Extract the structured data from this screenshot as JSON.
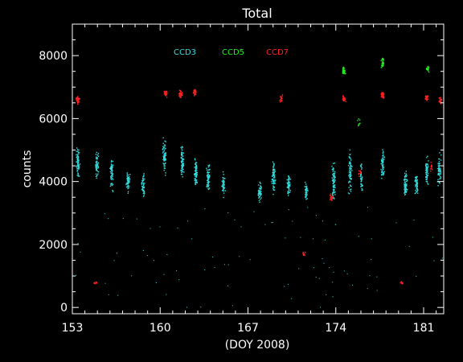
{
  "chart_data": {
    "type": "scatter",
    "title": "Total",
    "xlabel": "(DOY 2008)",
    "ylabel": "counts",
    "xlim": [
      153,
      182.6
    ],
    "ylim": [
      -200,
      9000
    ],
    "xticks": [
      153,
      160,
      167,
      174,
      181
    ],
    "yticks": [
      0,
      2000,
      4000,
      6000,
      8000
    ],
    "legend_placement": "top-center",
    "grid": false,
    "series": [
      {
        "name": "CCD3",
        "color": "#33dddd",
        "clusters": [
          {
            "x": 153.4,
            "y": 4600,
            "spread": 600,
            "n": 70
          },
          {
            "x": 154.9,
            "y": 4600,
            "spread": 500,
            "n": 55
          },
          {
            "x": 156.1,
            "y": 4300,
            "spread": 700,
            "n": 60
          },
          {
            "x": 157.4,
            "y": 4000,
            "spread": 500,
            "n": 50
          },
          {
            "x": 158.6,
            "y": 3900,
            "spread": 500,
            "n": 50
          },
          {
            "x": 160.3,
            "y": 4800,
            "spread": 700,
            "n": 70
          },
          {
            "x": 161.7,
            "y": 4600,
            "spread": 700,
            "n": 70
          },
          {
            "x": 162.8,
            "y": 4300,
            "spread": 600,
            "n": 70
          },
          {
            "x": 163.8,
            "y": 4100,
            "spread": 600,
            "n": 60
          },
          {
            "x": 165.0,
            "y": 3900,
            "spread": 500,
            "n": 45
          },
          {
            "x": 167.9,
            "y": 3700,
            "spread": 400,
            "n": 55
          },
          {
            "x": 169.0,
            "y": 4200,
            "spread": 700,
            "n": 70
          },
          {
            "x": 170.2,
            "y": 3900,
            "spread": 500,
            "n": 55
          },
          {
            "x": 171.6,
            "y": 3700,
            "spread": 400,
            "n": 40
          },
          {
            "x": 173.8,
            "y": 4000,
            "spread": 800,
            "n": 80
          },
          {
            "x": 175.1,
            "y": 4300,
            "spread": 900,
            "n": 70
          },
          {
            "x": 176.0,
            "y": 4100,
            "spread": 600,
            "n": 40
          },
          {
            "x": 177.7,
            "y": 4600,
            "spread": 600,
            "n": 60
          },
          {
            "x": 179.5,
            "y": 4000,
            "spread": 600,
            "n": 70
          },
          {
            "x": 180.4,
            "y": 3900,
            "spread": 500,
            "n": 55
          },
          {
            "x": 181.2,
            "y": 4300,
            "spread": 600,
            "n": 60
          },
          {
            "x": 182.2,
            "y": 4400,
            "spread": 700,
            "n": 60
          }
        ]
      },
      {
        "name": "CCD5",
        "color": "#22ee22",
        "clusters": [
          {
            "x": 174.6,
            "y": 7500,
            "spread": 200,
            "n": 30
          },
          {
            "x": 177.7,
            "y": 7800,
            "spread": 200,
            "n": 30
          },
          {
            "x": 181.3,
            "y": 7600,
            "spread": 150,
            "n": 18
          },
          {
            "x": 175.8,
            "y": 5900,
            "spread": 150,
            "n": 8
          }
        ]
      },
      {
        "name": "CCD7",
        "color": "#ff2222",
        "clusters": [
          {
            "x": 153.4,
            "y": 6600,
            "spread": 180,
            "n": 40
          },
          {
            "x": 160.4,
            "y": 6800,
            "spread": 150,
            "n": 30
          },
          {
            "x": 161.6,
            "y": 6800,
            "spread": 180,
            "n": 35
          },
          {
            "x": 162.7,
            "y": 6850,
            "spread": 150,
            "n": 30
          },
          {
            "x": 169.6,
            "y": 6650,
            "spread": 150,
            "n": 20
          },
          {
            "x": 174.6,
            "y": 6650,
            "spread": 150,
            "n": 28
          },
          {
            "x": 177.7,
            "y": 6750,
            "spread": 180,
            "n": 35
          },
          {
            "x": 181.2,
            "y": 6700,
            "spread": 160,
            "n": 28
          },
          {
            "x": 182.3,
            "y": 6600,
            "spread": 160,
            "n": 28
          },
          {
            "x": 154.8,
            "y": 800,
            "spread": 60,
            "n": 12
          },
          {
            "x": 179.2,
            "y": 800,
            "spread": 60,
            "n": 10
          },
          {
            "x": 173.6,
            "y": 3500,
            "spread": 150,
            "n": 22
          },
          {
            "x": 171.4,
            "y": 1700,
            "spread": 120,
            "n": 12
          },
          {
            "x": 181.6,
            "y": 4500,
            "spread": 200,
            "n": 12
          },
          {
            "x": 175.9,
            "y": 4300,
            "spread": 200,
            "n": 8
          }
        ]
      }
    ],
    "scatter_noise": {
      "color": "#33dddd",
      "n": 90,
      "ymin": 0,
      "ymax": 3200
    }
  }
}
